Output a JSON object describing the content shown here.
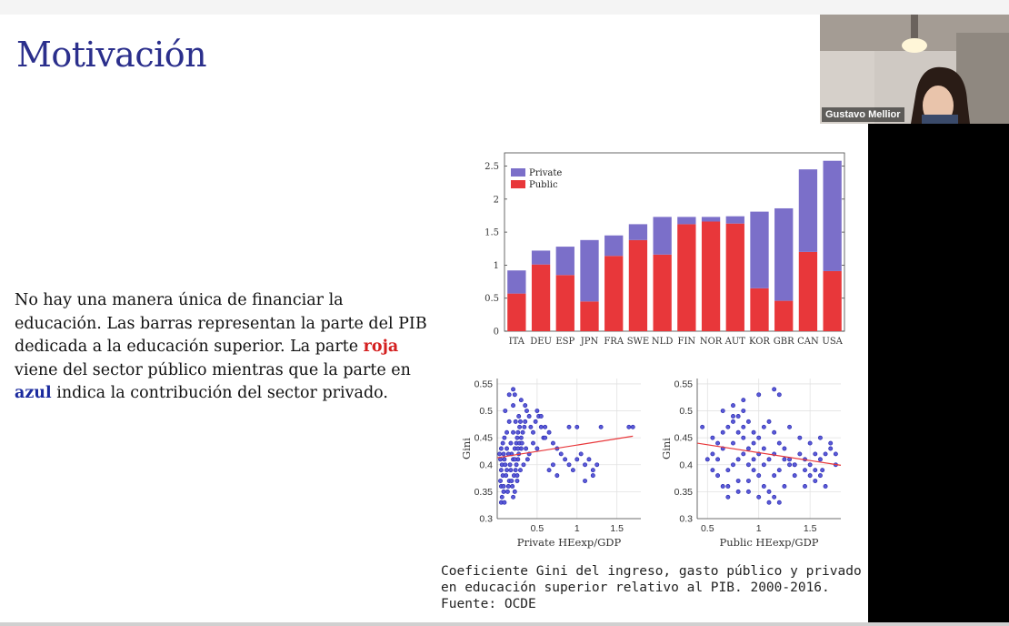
{
  "slide": {
    "title": "Motivación",
    "body": {
      "p1": "No hay una manera única de financiar la educación. Las barras representan la parte del PIB dedicada a la educación superior. La parte ",
      "red": "roja",
      "p2": " viene del sector público mientras que la parte en ",
      "blue": "azul",
      "p3": " indica la contribución del sector privado."
    },
    "caption": {
      "line1": "Coeficiente Gini del ingreso, gasto público y privado",
      "line2": "en educación superior relativo al PIB. 2000-2016.",
      "line3": "Fuente: OCDE"
    }
  },
  "webcam": {
    "name": "Gustavo Mellior"
  },
  "colors": {
    "public": "#e8373a",
    "private": "#7b6fc9",
    "fit_line": "#e8373a",
    "points": "#2a2ab0",
    "title": "#2b2f8c"
  },
  "chart_data": [
    {
      "type": "bar",
      "stacked": true,
      "categories": [
        "ITA",
        "DEU",
        "ESP",
        "JPN",
        "FRA",
        "SWE",
        "NLD",
        "FIN",
        "NOR",
        "AUT",
        "KOR",
        "GBR",
        "CAN",
        "USA"
      ],
      "series": [
        {
          "name": "Public",
          "values": [
            0.57,
            1.01,
            0.85,
            0.45,
            1.14,
            1.38,
            1.16,
            1.62,
            1.66,
            1.63,
            0.65,
            0.46,
            1.2,
            0.91
          ]
        },
        {
          "name": "Private",
          "values": [
            0.35,
            0.21,
            0.43,
            0.93,
            0.31,
            0.24,
            0.57,
            0.11,
            0.07,
            0.11,
            1.16,
            1.4,
            1.25,
            1.67
          ]
        }
      ],
      "ylim": [
        0,
        2.7
      ],
      "yticks": [
        0,
        0.5,
        1,
        1.5,
        2,
        2.5
      ],
      "ytick_labels": [
        "0",
        "0.5",
        "1",
        "1.5",
        "2",
        "2.5"
      ],
      "legend": {
        "position": "top-left",
        "entries": [
          "Private",
          "Public"
        ]
      },
      "grid": false
    },
    {
      "type": "scatter",
      "xlabel": "Private HEexp/GDP",
      "ylabel": "Gini",
      "xlim": [
        0,
        1.8
      ],
      "ylim": [
        0.3,
        0.56
      ],
      "xticks": [
        0.5,
        1,
        1.5
      ],
      "xtick_labels": [
        "0.5",
        "1",
        "1.5"
      ],
      "yticks": [
        0.3,
        0.35,
        0.4,
        0.45,
        0.5,
        0.55
      ],
      "ytick_labels": [
        "0.3",
        "0.35",
        "0.4",
        "0.45",
        "0.5",
        "0.55"
      ],
      "grid": true,
      "fit_line": [
        [
          0.0,
          0.413
        ],
        [
          1.7,
          0.453
        ]
      ],
      "points": [
        [
          0.05,
          0.33
        ],
        [
          0.06,
          0.34
        ],
        [
          0.05,
          0.36
        ],
        [
          0.08,
          0.35
        ],
        [
          0.04,
          0.37
        ],
        [
          0.07,
          0.38
        ],
        [
          0.05,
          0.39
        ],
        [
          0.06,
          0.4
        ],
        [
          0.04,
          0.41
        ],
        [
          0.08,
          0.42
        ],
        [
          0.05,
          0.43
        ],
        [
          0.07,
          0.44
        ],
        [
          0.09,
          0.41
        ],
        [
          0.1,
          0.4
        ],
        [
          0.12,
          0.39
        ],
        [
          0.11,
          0.38
        ],
        [
          0.14,
          0.36
        ],
        [
          0.15,
          0.37
        ],
        [
          0.16,
          0.4
        ],
        [
          0.18,
          0.42
        ],
        [
          0.2,
          0.41
        ],
        [
          0.22,
          0.43
        ],
        [
          0.24,
          0.44
        ],
        [
          0.25,
          0.45
        ],
        [
          0.26,
          0.46
        ],
        [
          0.28,
          0.47
        ],
        [
          0.3,
          0.45
        ],
        [
          0.3,
          0.43
        ],
        [
          0.27,
          0.42
        ],
        [
          0.23,
          0.39
        ],
        [
          0.21,
          0.38
        ],
        [
          0.19,
          0.36
        ],
        [
          0.2,
          0.34
        ],
        [
          0.22,
          0.35
        ],
        [
          0.25,
          0.37
        ],
        [
          0.24,
          0.4
        ],
        [
          0.26,
          0.41
        ],
        [
          0.28,
          0.44
        ],
        [
          0.32,
          0.46
        ],
        [
          0.34,
          0.47
        ],
        [
          0.35,
          0.48
        ],
        [
          0.37,
          0.5
        ],
        [
          0.4,
          0.49
        ],
        [
          0.42,
          0.47
        ],
        [
          0.45,
          0.46
        ],
        [
          0.48,
          0.48
        ],
        [
          0.5,
          0.5
        ],
        [
          0.52,
          0.49
        ],
        [
          0.55,
          0.47
        ],
        [
          0.58,
          0.45
        ],
        [
          0.6,
          0.47
        ],
        [
          0.65,
          0.46
        ],
        [
          0.7,
          0.44
        ],
        [
          0.75,
          0.43
        ],
        [
          0.8,
          0.42
        ],
        [
          0.85,
          0.41
        ],
        [
          0.9,
          0.4
        ],
        [
          0.95,
          0.39
        ],
        [
          1.0,
          0.41
        ],
        [
          1.05,
          0.42
        ],
        [
          1.1,
          0.4
        ],
        [
          1.15,
          0.41
        ],
        [
          1.2,
          0.39
        ],
        [
          1.25,
          0.4
        ],
        [
          1.3,
          0.47
        ],
        [
          1.0,
          0.47
        ],
        [
          0.9,
          0.47
        ],
        [
          1.65,
          0.47
        ],
        [
          1.7,
          0.47
        ],
        [
          0.15,
          0.53
        ],
        [
          0.2,
          0.54
        ],
        [
          0.22,
          0.53
        ],
        [
          0.2,
          0.51
        ],
        [
          0.1,
          0.5
        ],
        [
          0.15,
          0.48
        ],
        [
          0.12,
          0.46
        ],
        [
          0.09,
          0.45
        ],
        [
          0.3,
          0.52
        ],
        [
          0.35,
          0.51
        ],
        [
          0.55,
          0.49
        ],
        [
          0.6,
          0.45
        ],
        [
          0.5,
          0.43
        ],
        [
          0.45,
          0.44
        ],
        [
          0.4,
          0.42
        ],
        [
          0.38,
          0.41
        ],
        [
          0.33,
          0.4
        ],
        [
          0.29,
          0.39
        ],
        [
          0.25,
          0.38
        ],
        [
          0.18,
          0.37
        ],
        [
          0.14,
          0.42
        ],
        [
          0.12,
          0.43
        ],
        [
          0.17,
          0.44
        ],
        [
          0.2,
          0.46
        ],
        [
          0.23,
          0.48
        ],
        [
          0.27,
          0.49
        ],
        [
          0.31,
          0.44
        ],
        [
          0.36,
          0.43
        ],
        [
          0.7,
          0.4
        ],
        [
          0.65,
          0.39
        ],
        [
          0.75,
          0.38
        ],
        [
          1.2,
          0.38
        ],
        [
          1.1,
          0.37
        ],
        [
          0.03,
          0.42
        ],
        [
          0.08,
          0.36
        ],
        [
          0.09,
          0.33
        ],
        [
          0.13,
          0.35
        ],
        [
          0.17,
          0.39
        ],
        [
          0.22,
          0.41
        ],
        [
          0.26,
          0.43
        ],
        [
          0.29,
          0.48
        ]
      ]
    },
    {
      "type": "scatter",
      "xlabel": "Public HEexp/GDP",
      "ylabel": "Gini",
      "xlim": [
        0.4,
        1.8
      ],
      "ylim": [
        0.3,
        0.56
      ],
      "xticks": [
        0.5,
        1,
        1.5
      ],
      "xtick_labels": [
        "0.5",
        "1",
        "1.5"
      ],
      "yticks": [
        0.3,
        0.35,
        0.4,
        0.45,
        0.5,
        0.55
      ],
      "ytick_labels": [
        "0.3",
        "0.35",
        "0.4",
        "0.45",
        "0.5",
        "0.55"
      ],
      "grid": true,
      "fit_line": [
        [
          0.4,
          0.44
        ],
        [
          1.8,
          0.399
        ]
      ],
      "points": [
        [
          0.45,
          0.47
        ],
        [
          0.55,
          0.45
        ],
        [
          0.6,
          0.44
        ],
        [
          0.65,
          0.46
        ],
        [
          0.7,
          0.47
        ],
        [
          0.75,
          0.48
        ],
        [
          0.8,
          0.49
        ],
        [
          0.85,
          0.5
        ],
        [
          0.9,
          0.48
        ],
        [
          0.95,
          0.46
        ],
        [
          1.0,
          0.45
        ],
        [
          1.05,
          0.47
        ],
        [
          1.1,
          0.48
        ],
        [
          1.15,
          0.46
        ],
        [
          1.2,
          0.44
        ],
        [
          1.25,
          0.43
        ],
        [
          1.3,
          0.41
        ],
        [
          1.35,
          0.4
        ],
        [
          1.4,
          0.42
        ],
        [
          1.45,
          0.41
        ],
        [
          1.5,
          0.4
        ],
        [
          1.55,
          0.39
        ],
        [
          1.6,
          0.38
        ],
        [
          1.65,
          0.42
        ],
        [
          1.7,
          0.43
        ],
        [
          1.75,
          0.42
        ],
        [
          0.6,
          0.38
        ],
        [
          0.65,
          0.36
        ],
        [
          0.7,
          0.39
        ],
        [
          0.75,
          0.4
        ],
        [
          0.8,
          0.41
        ],
        [
          0.85,
          0.42
        ],
        [
          0.9,
          0.4
        ],
        [
          0.95,
          0.39
        ],
        [
          1.0,
          0.38
        ],
        [
          1.05,
          0.36
        ],
        [
          1.1,
          0.35
        ],
        [
          1.15,
          0.34
        ],
        [
          1.2,
          0.33
        ],
        [
          1.1,
          0.33
        ],
        [
          1.0,
          0.34
        ],
        [
          0.9,
          0.35
        ],
        [
          0.8,
          0.37
        ],
        [
          0.7,
          0.36
        ],
        [
          0.6,
          0.41
        ],
        [
          0.55,
          0.42
        ],
        [
          0.65,
          0.43
        ],
        [
          0.75,
          0.44
        ],
        [
          0.85,
          0.45
        ],
        [
          0.95,
          0.44
        ],
        [
          1.05,
          0.43
        ],
        [
          1.15,
          0.42
        ],
        [
          1.25,
          0.41
        ],
        [
          1.35,
          0.4
        ],
        [
          1.45,
          0.39
        ],
        [
          1.55,
          0.37
        ],
        [
          1.65,
          0.36
        ],
        [
          0.75,
          0.51
        ],
        [
          0.85,
          0.52
        ],
        [
          1.0,
          0.53
        ],
        [
          1.15,
          0.54
        ],
        [
          1.2,
          0.53
        ],
        [
          1.3,
          0.47
        ],
        [
          1.4,
          0.45
        ],
        [
          1.5,
          0.44
        ],
        [
          1.6,
          0.45
        ],
        [
          1.7,
          0.44
        ],
        [
          0.5,
          0.41
        ],
        [
          0.55,
          0.39
        ],
        [
          0.7,
          0.34
        ],
        [
          0.8,
          0.35
        ],
        [
          0.9,
          0.37
        ],
        [
          1.0,
          0.42
        ],
        [
          1.1,
          0.41
        ],
        [
          1.2,
          0.39
        ],
        [
          1.3,
          0.4
        ],
        [
          0.8,
          0.46
        ],
        [
          0.9,
          0.43
        ],
        [
          0.95,
          0.41
        ],
        [
          1.05,
          0.4
        ],
        [
          1.15,
          0.38
        ],
        [
          0.65,
          0.5
        ],
        [
          0.75,
          0.49
        ],
        [
          0.85,
          0.47
        ],
        [
          1.55,
          0.42
        ],
        [
          1.6,
          0.41
        ],
        [
          1.75,
          0.4
        ],
        [
          1.25,
          0.36
        ],
        [
          1.35,
          0.38
        ],
        [
          1.45,
          0.36
        ],
        [
          1.5,
          0.38
        ],
        [
          1.62,
          0.39
        ]
      ]
    }
  ]
}
